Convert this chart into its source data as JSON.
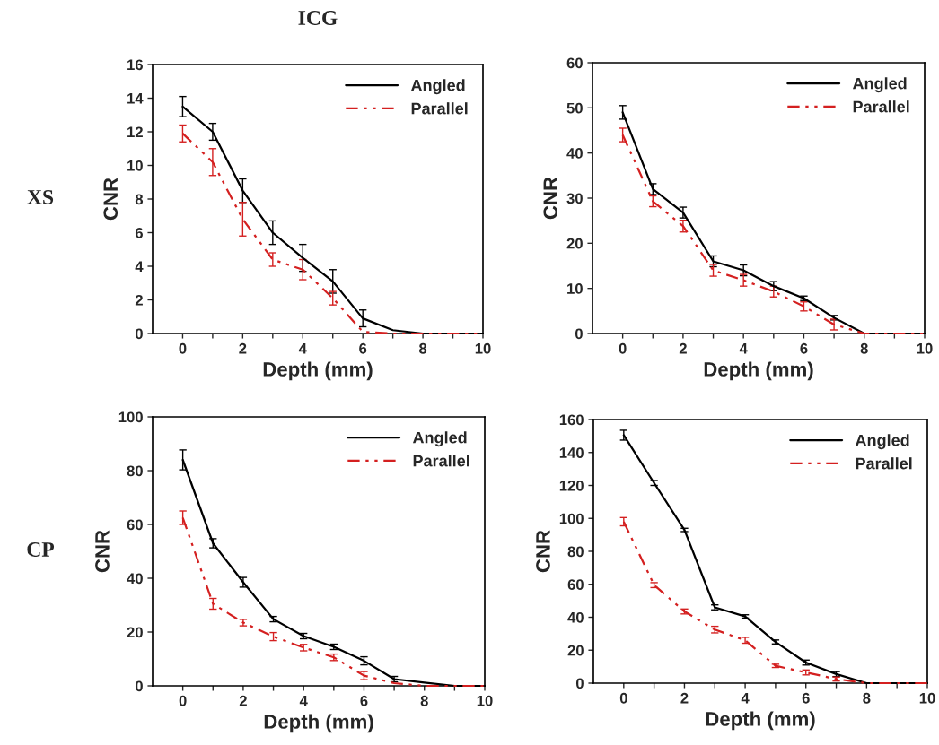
{
  "chart_data": [
    {
      "type": "line",
      "title": "ICG",
      "annotations": [
        "XS"
      ],
      "xlabel": "Depth (mm)",
      "ylabel": "CNR",
      "x": [
        0,
        1,
        2,
        3,
        4,
        5,
        6,
        7,
        8,
        9,
        10
      ],
      "xlim": [
        -1,
        10
      ],
      "xticks": [
        0,
        {
          "value": 1,
          "label": null
        },
        2,
        {
          "value": 3,
          "label": null
        },
        4,
        {
          "value": 5,
          "label": null
        },
        6,
        {
          "value": 7,
          "label": null
        },
        8,
        {
          "value": 9,
          "label": null
        },
        10
      ],
      "ylim": [
        0,
        16
      ],
      "yticks": [
        0,
        2,
        4,
        6,
        8,
        10,
        12,
        14,
        16
      ],
      "legend": "top right",
      "grid": false,
      "series": [
        {
          "name": "Angled",
          "color": "#000000",
          "line_style": "solid",
          "values": [
            13.5,
            12,
            8.5,
            6,
            4.5,
            3.1,
            0.9,
            0.2,
            0,
            0,
            0
          ],
          "errors": [
            0.6,
            0.5,
            0.7,
            0.7,
            0.8,
            0.7,
            0.5,
            null,
            null,
            null,
            null
          ]
        },
        {
          "name": "Parallel",
          "color": "#d42020",
          "line_style": "dashed",
          "values": [
            11.9,
            10.2,
            6.8,
            4.4,
            3.8,
            2.1,
            0.1,
            0,
            0,
            0,
            0
          ],
          "errors": [
            0.5,
            0.8,
            1.0,
            0.4,
            0.6,
            0.4,
            null,
            null,
            null,
            null,
            null
          ]
        }
      ]
    },
    {
      "type": "line",
      "xlabel": "Depth (mm)",
      "ylabel": "CNR",
      "x": [
        0,
        1,
        2,
        3,
        4,
        5,
        6,
        7,
        8,
        9,
        10
      ],
      "xlim": [
        -1,
        10
      ],
      "xticks": [
        0,
        {
          "value": 1,
          "label": null
        },
        2,
        {
          "value": 3,
          "label": null
        },
        4,
        {
          "value": 5,
          "label": null
        },
        6,
        {
          "value": 7,
          "label": null
        },
        8,
        {
          "value": 9,
          "label": null
        },
        10
      ],
      "ylim": [
        0,
        60
      ],
      "yticks": [
        0,
        10,
        20,
        30,
        40,
        50,
        60
      ],
      "legend": "top right",
      "grid": false,
      "series": [
        {
          "name": "Angled",
          "color": "#000000",
          "line_style": "solid",
          "values": [
            49,
            32,
            26.8,
            16,
            14,
            10.5,
            7.8,
            3.5,
            0,
            0,
            0
          ],
          "errors": [
            1.5,
            1.2,
            1.2,
            1.2,
            1.2,
            1.0,
            0.5,
            0.5,
            null,
            null,
            null
          ]
        },
        {
          "name": "Parallel",
          "color": "#d42020",
          "line_style": "dashed",
          "values": [
            44,
            29.3,
            23.8,
            14,
            11.8,
            9.3,
            6,
            2,
            0,
            0,
            0
          ],
          "errors": [
            1.5,
            1.2,
            1.3,
            1.3,
            1.3,
            1.2,
            1.0,
            1.2,
            null,
            null,
            null
          ]
        }
      ]
    },
    {
      "type": "line",
      "annotations": [
        "CP"
      ],
      "xlabel": "Depth (mm)",
      "ylabel": "CNR",
      "x": [
        0,
        1,
        2,
        3,
        4,
        5,
        6,
        7,
        8,
        9,
        10
      ],
      "xlim": [
        -1,
        10
      ],
      "xticks": [
        0,
        {
          "value": 1,
          "label": null
        },
        2,
        {
          "value": 3,
          "label": null
        },
        4,
        {
          "value": 5,
          "label": null
        },
        6,
        {
          "value": 7,
          "label": null
        },
        8,
        {
          "value": 9,
          "label": null
        },
        10
      ],
      "ylim": [
        0,
        100
      ],
      "yticks": [
        0,
        20,
        40,
        60,
        80,
        100
      ],
      "legend": "top right",
      "grid": false,
      "series": [
        {
          "name": "Angled",
          "color": "#000000",
          "line_style": "solid",
          "values": [
            84,
            53,
            38.5,
            24.8,
            18.5,
            14.5,
            9.3,
            2.5,
            1.2,
            0,
            0
          ],
          "errors": [
            3.7,
            1.7,
            1.8,
            1.0,
            1.0,
            1.0,
            1.5,
            1.0,
            null,
            null,
            null
          ]
        },
        {
          "name": "Parallel",
          "color": "#d42020",
          "line_style": "dashed",
          "values": [
            62.5,
            30.5,
            23.5,
            18.3,
            14.2,
            10.6,
            3.8,
            1,
            0,
            0,
            0
          ],
          "errors": [
            2.5,
            2.0,
            1.2,
            1.5,
            1.2,
            1.2,
            1.5,
            null,
            null,
            null,
            null
          ]
        }
      ]
    },
    {
      "type": "line",
      "xlabel": "Depth (mm)",
      "ylabel": "CNR",
      "x": [
        0,
        1,
        2,
        3,
        4,
        5,
        6,
        7,
        8,
        9,
        10
      ],
      "xlim": [
        -1,
        10
      ],
      "xticks": [
        0,
        {
          "value": 1,
          "label": null
        },
        2,
        {
          "value": 3,
          "label": null
        },
        4,
        {
          "value": 5,
          "label": null
        },
        6,
        {
          "value": 7,
          "label": null
        },
        8,
        {
          "value": 9,
          "label": null
        },
        10
      ],
      "ylim": [
        0,
        160
      ],
      "yticks": [
        0,
        20,
        40,
        60,
        80,
        100,
        120,
        140,
        160
      ],
      "legend": "top right",
      "grid": false,
      "series": [
        {
          "name": "Angled",
          "color": "#000000",
          "line_style": "solid",
          "values": [
            150.5,
            121.5,
            93,
            46,
            40.5,
            25,
            12.5,
            5.5,
            0,
            0,
            0
          ],
          "errors": [
            3.0,
            1.5,
            1.0,
            1.5,
            1.0,
            1.2,
            1.5,
            1.5,
            null,
            null,
            null
          ]
        },
        {
          "name": "Parallel",
          "color": "#d42020",
          "line_style": "dashed",
          "values": [
            98,
            59.5,
            43.5,
            32.5,
            26,
            10.5,
            6.5,
            2.5,
            0,
            0,
            0
          ],
          "errors": [
            2.5,
            1.5,
            1.5,
            2.0,
            1.8,
            1.0,
            1.5,
            1.2,
            null,
            null,
            null
          ]
        }
      ]
    }
  ]
}
